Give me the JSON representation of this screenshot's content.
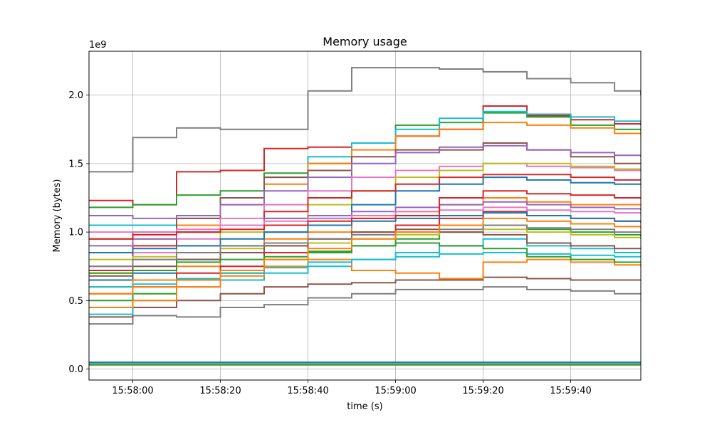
{
  "chart_data": {
    "type": "line",
    "title": "Memory usage",
    "xlabel": "time (s)",
    "ylabel": "Memory (bytes)",
    "y_offset_label": "1e9",
    "x_tick_labels": [
      "15:58:00",
      "15:58:20",
      "15:58:40",
      "15:59:00",
      "15:59:20",
      "15:59:40"
    ],
    "x_ticks": [
      "15:58:00",
      "15:58:20",
      "15:58:40",
      "15:59:00",
      "15:59:20",
      "15:59:40"
    ],
    "xlim": [
      "15:57:50",
      "15:59:56"
    ],
    "y_tick_labels": [
      "0.0",
      "0.5",
      "1.0",
      "1.5",
      "2.0"
    ],
    "y_ticks": [
      0.0,
      0.5,
      1.0,
      1.5,
      2.0
    ],
    "ylim": [
      -0.08,
      2.32
    ],
    "y_unit_multiplier": 1000000000,
    "grid": true,
    "legend": "none",
    "line_colors": [
      "#1f77b4",
      "#ff7f0e",
      "#2ca02c",
      "#d62728",
      "#9467bd",
      "#8c564b",
      "#e377c2",
      "#7f7f7f",
      "#bcbd22",
      "#17becf"
    ],
    "x": [
      "15:57:50",
      "15:58:00",
      "15:58:10",
      "15:58:20",
      "15:58:30",
      "15:58:40",
      "15:58:50",
      "15:59:00",
      "15:59:10",
      "15:59:20",
      "15:59:30",
      "15:59:40",
      "15:59:50",
      "15:59:56"
    ],
    "series": [
      {
        "color": "#7f7f7f",
        "values": [
          1.44,
          1.69,
          1.76,
          1.75,
          1.75,
          2.03,
          2.2,
          2.2,
          2.19,
          2.17,
          2.12,
          2.09,
          2.03,
          2.0
        ]
      },
      {
        "color": "#d62728",
        "values": [
          1.23,
          1.2,
          1.44,
          1.45,
          1.61,
          1.62,
          1.65,
          1.7,
          1.75,
          1.92,
          1.85,
          1.82,
          1.79,
          1.78
        ]
      },
      {
        "color": "#2ca02c",
        "values": [
          1.18,
          1.2,
          1.27,
          1.3,
          1.43,
          1.5,
          1.65,
          1.78,
          1.8,
          1.87,
          1.84,
          1.78,
          1.75,
          1.74
        ]
      },
      {
        "color": "#17becf",
        "values": [
          1.05,
          1.05,
          1.1,
          1.25,
          1.4,
          1.55,
          1.65,
          1.75,
          1.83,
          1.88,
          1.86,
          1.84,
          1.81,
          1.8
        ]
      },
      {
        "color": "#ff7f0e",
        "values": [
          0.85,
          0.95,
          1.05,
          1.2,
          1.35,
          1.5,
          1.6,
          1.7,
          1.75,
          1.8,
          1.78,
          1.76,
          1.72,
          1.71
        ]
      },
      {
        "color": "#8c564b",
        "values": [
          0.95,
          1.0,
          1.1,
          1.25,
          1.4,
          1.45,
          1.55,
          1.6,
          1.6,
          1.65,
          1.6,
          1.55,
          1.5,
          1.5
        ]
      },
      {
        "color": "#9467bd",
        "values": [
          1.12,
          1.1,
          1.12,
          1.2,
          1.3,
          1.4,
          1.5,
          1.58,
          1.62,
          1.63,
          1.6,
          1.58,
          1.56,
          1.55
        ]
      },
      {
        "color": "#e377c2",
        "values": [
          0.75,
          0.85,
          0.95,
          1.1,
          1.2,
          1.3,
          1.4,
          1.45,
          1.48,
          1.5,
          1.48,
          1.47,
          1.45,
          1.45
        ]
      },
      {
        "color": "#bcbd22",
        "values": [
          0.7,
          0.8,
          0.9,
          1.0,
          1.1,
          1.2,
          1.3,
          1.4,
          1.45,
          1.5,
          1.5,
          1.48,
          1.46,
          1.45
        ]
      },
      {
        "color": "#1f77b4",
        "values": [
          0.65,
          0.7,
          0.8,
          0.9,
          1.0,
          1.1,
          1.2,
          1.3,
          1.35,
          1.4,
          1.38,
          1.36,
          1.35,
          1.35
        ]
      },
      {
        "color": "#d62728",
        "values": [
          0.72,
          0.9,
          1.0,
          1.05,
          1.15,
          1.25,
          1.3,
          1.35,
          1.4,
          1.42,
          1.42,
          1.4,
          1.38,
          1.38
        ]
      },
      {
        "color": "#ff7f0e",
        "values": [
          0.6,
          0.65,
          0.75,
          0.85,
          0.95,
          1.0,
          1.1,
          1.15,
          1.2,
          1.25,
          1.22,
          1.2,
          1.2,
          1.2
        ]
      },
      {
        "color": "#7f7f7f",
        "values": [
          0.33,
          0.39,
          0.38,
          0.45,
          0.47,
          0.52,
          0.55,
          0.58,
          0.58,
          0.6,
          0.58,
          0.57,
          0.55,
          0.55
        ]
      },
      {
        "color": "#8c564b",
        "values": [
          0.38,
          0.45,
          0.5,
          0.55,
          0.6,
          0.62,
          0.63,
          0.65,
          0.65,
          0.67,
          0.66,
          0.65,
          0.65,
          0.65
        ]
      },
      {
        "color": "#17becf",
        "values": [
          0.4,
          0.5,
          0.6,
          0.65,
          0.7,
          0.75,
          0.8,
          0.85,
          0.9,
          0.95,
          0.9,
          0.88,
          0.85,
          0.85
        ]
      },
      {
        "color": "#2ca02c",
        "values": [
          0.5,
          0.55,
          0.65,
          0.7,
          0.8,
          0.85,
          0.9,
          0.95,
          1.0,
          1.05,
          1.02,
          1.0,
          0.98,
          0.97
        ]
      },
      {
        "color": "#d62728",
        "values": [
          0.55,
          0.6,
          0.7,
          0.75,
          0.85,
          0.95,
          1.0,
          1.05,
          1.1,
          1.15,
          1.12,
          1.1,
          1.08,
          1.07
        ]
      },
      {
        "color": "#ff7f0e",
        "values": [
          0.45,
          0.5,
          0.6,
          0.68,
          0.75,
          0.8,
          0.72,
          0.7,
          0.66,
          0.78,
          0.8,
          0.78,
          0.76,
          0.75
        ]
      },
      {
        "color": "#9467bd",
        "values": [
          0.9,
          0.95,
          1.0,
          1.05,
          1.1,
          1.12,
          1.15,
          1.18,
          1.2,
          1.22,
          1.2,
          1.18,
          1.17,
          1.16
        ]
      },
      {
        "color": "#1f77b4",
        "values": [
          0.85,
          0.88,
          0.9,
          0.95,
          1.0,
          1.05,
          1.08,
          1.1,
          1.12,
          1.14,
          1.12,
          1.1,
          1.08,
          1.08
        ]
      },
      {
        "color": "#e377c2",
        "values": [
          1.0,
          1.0,
          1.02,
          1.05,
          1.08,
          1.1,
          1.12,
          1.15,
          1.16,
          1.18,
          1.16,
          1.15,
          1.14,
          1.13
        ]
      },
      {
        "color": "#bcbd22",
        "values": [
          0.8,
          0.82,
          0.85,
          0.88,
          0.9,
          0.92,
          0.95,
          0.98,
          1.0,
          1.02,
          1.0,
          0.98,
          0.96,
          0.95
        ]
      },
      {
        "color": "#8c564b",
        "values": [
          0.68,
          0.75,
          0.8,
          0.85,
          0.9,
          0.95,
          1.0,
          1.02,
          1.0,
          0.98,
          0.92,
          0.9,
          0.88,
          0.88
        ]
      },
      {
        "color": "#17becf",
        "values": [
          0.6,
          0.62,
          0.66,
          0.7,
          0.74,
          0.78,
          0.8,
          0.82,
          0.84,
          0.85,
          0.84,
          0.83,
          0.82,
          0.82
        ]
      },
      {
        "color": "#2ca02c",
        "values": [
          0.7,
          0.72,
          0.78,
          0.8,
          0.82,
          0.86,
          0.9,
          0.92,
          0.9,
          0.88,
          0.82,
          0.8,
          0.78,
          0.78
        ]
      },
      {
        "color": "#d62728",
        "values": [
          0.95,
          0.98,
          1.0,
          1.02,
          1.05,
          1.08,
          1.1,
          1.12,
          1.25,
          1.3,
          1.28,
          1.27,
          1.25,
          1.25
        ]
      },
      {
        "color": "#7f7f7f",
        "values": [
          0.75,
          0.8,
          0.85,
          0.9,
          0.92,
          0.95,
          0.98,
          1.0,
          1.02,
          1.05,
          1.03,
          1.02,
          1.0,
          1.0
        ]
      },
      {
        "color": "#ff7f0e",
        "values": [
          0.55,
          0.6,
          0.65,
          0.72,
          0.8,
          0.88,
          0.95,
          1.0,
          1.05,
          1.1,
          1.08,
          1.06,
          1.04,
          1.03
        ]
      },
      {
        "color": "#1f77b4",
        "values": [
          0.05,
          0.05,
          0.05,
          0.05,
          0.05,
          0.05,
          0.05,
          0.05,
          0.05,
          0.05,
          0.05,
          0.05,
          0.05,
          0.05
        ]
      },
      {
        "color": "#17becf",
        "values": [
          0.04,
          0.04,
          0.04,
          0.04,
          0.04,
          0.04,
          0.04,
          0.04,
          0.04,
          0.04,
          0.04,
          0.04,
          0.04,
          0.04
        ]
      },
      {
        "color": "#ff7f0e",
        "values": [
          0.035,
          0.035,
          0.035,
          0.035,
          0.035,
          0.035,
          0.035,
          0.035,
          0.035,
          0.035,
          0.035,
          0.035,
          0.035,
          0.035
        ]
      },
      {
        "color": "#2ca02c",
        "values": [
          0.03,
          0.03,
          0.03,
          0.03,
          0.03,
          0.03,
          0.03,
          0.03,
          0.03,
          0.03,
          0.03,
          0.03,
          0.03,
          0.03
        ]
      }
    ]
  }
}
